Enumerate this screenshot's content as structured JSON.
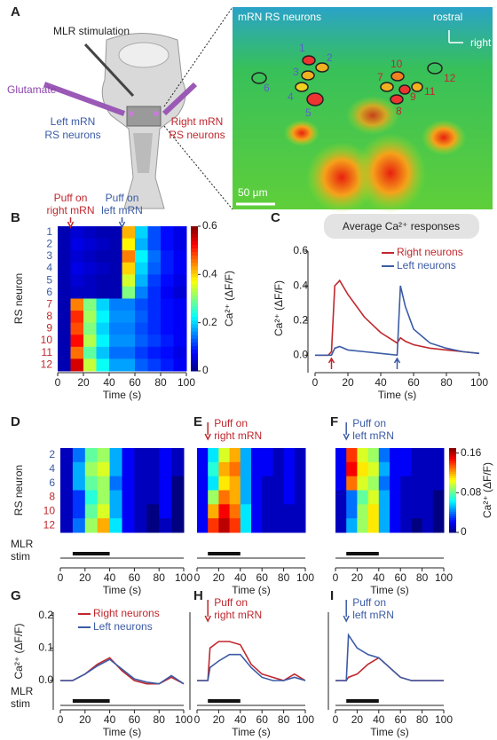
{
  "figure": {
    "panel_a": {
      "label": "A",
      "labels": [
        "MLR stimulation",
        "Glutamate",
        "Left mRN",
        "RS neurons",
        "Right mRN",
        "RS neurons"
      ],
      "image_title": "mRN RS neurons",
      "rostral": "rostral",
      "right": "right",
      "scale_bar": "50 µm",
      "neurons": [
        "1",
        "2",
        "3",
        "4",
        "5",
        "6",
        "7",
        "8",
        "9",
        "10",
        "11",
        "12"
      ]
    }
  },
  "chart_data": [
    {
      "type": "heatmap",
      "label": "B",
      "x_bins": [
        0,
        10,
        20,
        30,
        40,
        50,
        60,
        70,
        80,
        90,
        100
      ],
      "categories": [
        "1",
        "2",
        "3",
        "4",
        "5",
        "6",
        "7",
        "8",
        "9",
        "10",
        "11",
        "12"
      ],
      "category_colors": [
        "#3b5ba5",
        "#3b5ba5",
        "#3b5ba5",
        "#3b5ba5",
        "#3b5ba5",
        "#3b5ba5",
        "#c0272d",
        "#c0272d",
        "#c0272d",
        "#c0272d",
        "#c0272d",
        "#c0272d"
      ],
      "z": [
        [
          0.03,
          0.05,
          0.04,
          0.03,
          0.03,
          0.42,
          0.2,
          0.12,
          0.08,
          0.06
        ],
        [
          0.03,
          0.06,
          0.05,
          0.04,
          0.03,
          0.38,
          0.18,
          0.12,
          0.08,
          0.06
        ],
        [
          0.03,
          0.05,
          0.04,
          0.03,
          0.03,
          0.45,
          0.22,
          0.14,
          0.09,
          0.07
        ],
        [
          0.03,
          0.06,
          0.05,
          0.04,
          0.03,
          0.4,
          0.2,
          0.13,
          0.09,
          0.07
        ],
        [
          0.03,
          0.05,
          0.04,
          0.03,
          0.03,
          0.35,
          0.18,
          0.11,
          0.08,
          0.06
        ],
        [
          0.03,
          0.04,
          0.04,
          0.03,
          0.03,
          0.3,
          0.15,
          0.1,
          0.07,
          0.05
        ],
        [
          0.03,
          0.45,
          0.3,
          0.2,
          0.15,
          0.15,
          0.12,
          0.1,
          0.08,
          0.07
        ],
        [
          0.03,
          0.5,
          0.32,
          0.22,
          0.16,
          0.16,
          0.13,
          0.1,
          0.08,
          0.07
        ],
        [
          0.03,
          0.48,
          0.3,
          0.2,
          0.15,
          0.15,
          0.12,
          0.1,
          0.08,
          0.07
        ],
        [
          0.03,
          0.52,
          0.33,
          0.22,
          0.16,
          0.16,
          0.13,
          0.11,
          0.09,
          0.07
        ],
        [
          0.03,
          0.46,
          0.28,
          0.19,
          0.14,
          0.14,
          0.11,
          0.09,
          0.08,
          0.06
        ],
        [
          0.03,
          0.55,
          0.34,
          0.23,
          0.17,
          0.17,
          0.13,
          0.11,
          0.09,
          0.07
        ]
      ],
      "xlim": [
        0,
        100
      ],
      "xticks": [
        0,
        20,
        40,
        60,
        80,
        100
      ],
      "xlabel": "Time (s)",
      "ylabel": "RS neuron",
      "colorbar": {
        "label": "Ca²⁺ (ΔF/F)",
        "lim": [
          0,
          0.6
        ],
        "ticks": [
          0,
          0.2,
          0.4,
          0.6
        ]
      },
      "annotations": [
        {
          "lines": [
            "Puff on",
            "right mRN"
          ],
          "x": 10,
          "color": "#c0272d"
        },
        {
          "lines": [
            "Puff on",
            "left mRN"
          ],
          "x": 50,
          "color": "#3b5ba5"
        }
      ]
    },
    {
      "type": "line",
      "label": "C",
      "title": "Average Ca²⁺ responses",
      "x": [
        0,
        5,
        8,
        10,
        12,
        15,
        20,
        30,
        40,
        50,
        52,
        55,
        60,
        70,
        80,
        90,
        100
      ],
      "series": [
        {
          "name": "Right neurons",
          "color": "#c0272d",
          "values": [
            0,
            0,
            0,
            0.02,
            0.4,
            0.43,
            0.35,
            0.22,
            0.13,
            0.07,
            0.1,
            0.08,
            0.06,
            0.04,
            0.03,
            0.02,
            0.01
          ]
        },
        {
          "name": "Left neurons",
          "color": "#3b5ba5",
          "values": [
            0,
            0,
            0,
            0,
            0.04,
            0.05,
            0.03,
            0.02,
            0.01,
            0,
            0.4,
            0.28,
            0.15,
            0.07,
            0.04,
            0.02,
            0.01
          ]
        }
      ],
      "xlim": [
        0,
        100
      ],
      "xticks": [
        0,
        20,
        40,
        60,
        80,
        100
      ],
      "ylim": [
        -0.06,
        0.6
      ],
      "yticks": [
        {
          "value": 0,
          "label": "0.0"
        },
        0.2,
        0.4,
        0.6
      ],
      "xlabel": "Time (s)",
      "ylabel": "Ca²⁺ (ΔF/F)",
      "legend": "upper right",
      "events": [
        {
          "x": 10,
          "color": "#c0272d"
        },
        {
          "x": 50,
          "color": "#3b5ba5"
        }
      ]
    },
    {
      "type": "heatmap",
      "label": "D",
      "x_bins": [
        0,
        10,
        20,
        30,
        40,
        50,
        60,
        70,
        80,
        90,
        100
      ],
      "categories": [
        "2",
        "4",
        "6",
        "8",
        "10",
        "12"
      ],
      "category_colors": [
        "#3b5ba5",
        "#3b5ba5",
        "#3b5ba5",
        "#c0272d",
        "#c0272d",
        "#c0272d"
      ],
      "z": [
        [
          0.01,
          0.04,
          0.08,
          0.09,
          0.05,
          0.02,
          0.01,
          0.01,
          0.02,
          0.01
        ],
        [
          0.01,
          0.05,
          0.09,
          0.1,
          0.05,
          0.02,
          0.01,
          0.01,
          0.02,
          0.01
        ],
        [
          0.01,
          0.05,
          0.08,
          0.09,
          0.04,
          0.02,
          0.01,
          0.01,
          0.02,
          0.0
        ],
        [
          0.01,
          0.03,
          0.07,
          0.09,
          0.05,
          0.02,
          0.01,
          0.01,
          0.02,
          0.0
        ],
        [
          0.01,
          0.03,
          0.08,
          0.1,
          0.05,
          0.02,
          0.01,
          0.0,
          0.02,
          0.0
        ],
        [
          0.01,
          0.04,
          0.09,
          0.12,
          0.06,
          0.02,
          0.01,
          0.0,
          0.01,
          0.0
        ]
      ],
      "xlim": [
        0,
        100
      ],
      "xticks": [
        0,
        20,
        40,
        60,
        80,
        100
      ],
      "xlabel": "Time (s)",
      "ylabel": "RS neuron",
      "stim": {
        "label": [
          "MLR",
          "stim"
        ],
        "range": [
          10,
          40
        ]
      }
    },
    {
      "type": "heatmap",
      "label": "E",
      "x_bins": [
        0,
        10,
        20,
        30,
        40,
        50,
        60,
        70,
        80,
        90,
        100
      ],
      "categories": [
        null,
        null,
        null,
        null,
        null,
        null
      ],
      "z": [
        [
          0.02,
          0.06,
          0.1,
          0.12,
          0.05,
          0.02,
          0.02,
          0.01,
          0.02,
          0.01
        ],
        [
          0.02,
          0.07,
          0.12,
          0.13,
          0.05,
          0.02,
          0.02,
          0.01,
          0.02,
          0.01
        ],
        [
          0.02,
          0.06,
          0.11,
          0.12,
          0.05,
          0.02,
          0.01,
          0.01,
          0.02,
          0.01
        ],
        [
          0.02,
          0.09,
          0.13,
          0.12,
          0.05,
          0.02,
          0.01,
          0.01,
          0.02,
          0.01
        ],
        [
          0.02,
          0.12,
          0.15,
          0.13,
          0.06,
          0.02,
          0.01,
          0.01,
          0.01,
          0.01
        ],
        [
          0.02,
          0.14,
          0.16,
          0.14,
          0.06,
          0.02,
          0.01,
          0.01,
          0.01,
          0.01
        ]
      ],
      "xlim": [
        0,
        100
      ],
      "xticks": [
        0,
        20,
        40,
        60,
        80,
        100
      ],
      "xlabel": "Time (s)",
      "stim": {
        "range": [
          10,
          40
        ]
      },
      "annotations": [
        {
          "lines": [
            "Puff on",
            "right mRN"
          ],
          "x": 10,
          "color": "#c0272d"
        }
      ]
    },
    {
      "type": "heatmap",
      "label": "F",
      "x_bins": [
        0,
        10,
        20,
        30,
        40,
        50,
        60,
        70,
        80,
        90,
        100
      ],
      "categories": [
        null,
        null,
        null,
        null,
        null,
        null
      ],
      "z": [
        [
          0.02,
          0.14,
          0.1,
          0.09,
          0.04,
          0.02,
          0.02,
          0.01,
          0.01,
          0.01
        ],
        [
          0.02,
          0.15,
          0.11,
          0.1,
          0.05,
          0.02,
          0.02,
          0.01,
          0.01,
          0.01
        ],
        [
          0.02,
          0.13,
          0.1,
          0.09,
          0.04,
          0.02,
          0.01,
          0.01,
          0.01,
          0.01
        ],
        [
          0.01,
          0.04,
          0.08,
          0.1,
          0.05,
          0.02,
          0.01,
          0.01,
          0.01,
          0.0
        ],
        [
          0.01,
          0.04,
          0.09,
          0.11,
          0.05,
          0.02,
          0.01,
          0.01,
          0.01,
          0.0
        ],
        [
          0.01,
          0.05,
          0.09,
          0.11,
          0.05,
          0.02,
          0.01,
          0.0,
          0.01,
          0.0
        ]
      ],
      "xlim": [
        0,
        100
      ],
      "xticks": [
        0,
        20,
        40,
        60,
        80,
        100
      ],
      "xlabel": "Time (s)",
      "colorbar": {
        "label": "Ca²⁺ (ΔF/F)",
        "lim": [
          0,
          0.17
        ],
        "ticks": [
          0,
          0.08,
          0.16
        ]
      },
      "stim": {
        "range": [
          10,
          40
        ]
      },
      "annotations": [
        {
          "lines": [
            "Puff on",
            "left mRN"
          ],
          "x": 10,
          "color": "#3b5ba5"
        }
      ]
    },
    {
      "type": "line",
      "label": "G",
      "x": [
        0,
        10,
        20,
        30,
        40,
        50,
        60,
        70,
        80,
        90,
        100
      ],
      "series": [
        {
          "name": "Right neurons",
          "color": "#c0272d",
          "values": [
            0,
            0,
            0.02,
            0.05,
            0.07,
            0.03,
            0.0,
            -0.01,
            -0.01,
            0.01,
            -0.01
          ]
        },
        {
          "name": "Left neurons",
          "color": "#3b5ba5",
          "values": [
            0,
            0,
            0.02,
            0.045,
            0.065,
            0.035,
            0.005,
            -0.005,
            -0.01,
            0.015,
            -0.01
          ]
        }
      ],
      "xlim": [
        0,
        100
      ],
      "xticks": [
        0,
        20,
        40,
        60,
        80,
        100
      ],
      "ylim": [
        -0.03,
        0.21
      ],
      "yticks": [
        {
          "value": 0,
          "label": "0.0"
        },
        0.1,
        0.2
      ],
      "xlabel": "Time (s)",
      "ylabel": "Ca²⁺ (ΔF/F)",
      "legend": "upper left",
      "stim": {
        "label": [
          "MLR",
          "stim"
        ],
        "range": [
          10,
          40
        ]
      }
    },
    {
      "type": "line",
      "label": "H",
      "x": [
        0,
        10,
        12,
        20,
        30,
        40,
        50,
        60,
        70,
        80,
        90,
        100
      ],
      "series": [
        {
          "color": "#c0272d",
          "values": [
            0,
            0,
            0.1,
            0.12,
            0.12,
            0.11,
            0.05,
            0.02,
            0.01,
            0,
            0.02,
            0
          ]
        },
        {
          "color": "#3b5ba5",
          "values": [
            0,
            0,
            0.04,
            0.06,
            0.08,
            0.08,
            0.04,
            0.01,
            0,
            0,
            0.01,
            0
          ]
        }
      ],
      "xlim": [
        0,
        100
      ],
      "xticks": [
        0,
        20,
        40,
        60,
        80,
        100
      ],
      "ylim": [
        -0.03,
        0.21
      ],
      "xlabel": "Time (s)",
      "stim": {
        "range": [
          10,
          40
        ]
      },
      "annotations": [
        {
          "lines": [
            "Puff on",
            "right mRN"
          ],
          "x": 10,
          "color": "#c0272d"
        }
      ]
    },
    {
      "type": "line",
      "label": "I",
      "x": [
        0,
        10,
        12,
        20,
        30,
        40,
        50,
        60,
        70,
        80,
        90,
        100
      ],
      "series": [
        {
          "color": "#c0272d",
          "values": [
            0,
            0,
            0.01,
            0.02,
            0.05,
            0.07,
            0.04,
            0.01,
            0,
            0,
            0,
            0
          ]
        },
        {
          "color": "#3b5ba5",
          "values": [
            0,
            0,
            0.14,
            0.1,
            0.08,
            0.07,
            0.04,
            0.01,
            0,
            0,
            0,
            0
          ]
        }
      ],
      "xlim": [
        0,
        100
      ],
      "xticks": [
        0,
        20,
        40,
        60,
        80,
        100
      ],
      "ylim": [
        -0.03,
        0.21
      ],
      "xlabel": "Time (s)",
      "stim": {
        "range": [
          10,
          40
        ]
      },
      "annotations": [
        {
          "lines": [
            "Puff on",
            "left mRN"
          ],
          "x": 10,
          "color": "#3b5ba5"
        }
      ]
    }
  ]
}
